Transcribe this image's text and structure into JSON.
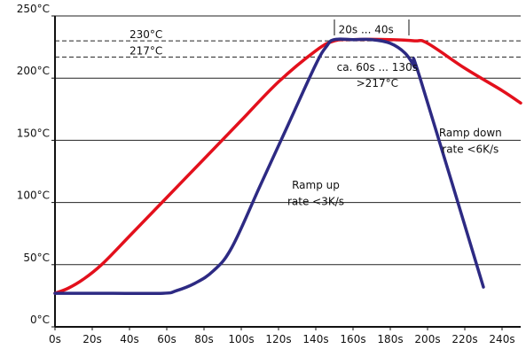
{
  "chart_data": {
    "type": "line",
    "xlim": [
      0,
      250
    ],
    "ylim": [
      0,
      250
    ],
    "x_ticks": [
      0,
      20,
      40,
      60,
      80,
      100,
      120,
      140,
      160,
      180,
      200,
      220,
      240
    ],
    "x_tick_labels": [
      "0s",
      "20s",
      "40s",
      "60s",
      "80s",
      "100s",
      "120s",
      "140s",
      "160s",
      "180s",
      "200s",
      "220s",
      "240s"
    ],
    "y_ticks": [
      0,
      50,
      100,
      150,
      200,
      250
    ],
    "y_tick_labels": [
      "0°C",
      "50°C",
      "100°C",
      "150°C",
      "200°C",
      "250°C"
    ],
    "grid": "horizontal",
    "reference_lines": [
      {
        "y": 230,
        "label": "230°C"
      },
      {
        "y": 217,
        "label": "217°C"
      }
    ],
    "series": [
      {
        "color": "#e3101c",
        "points": [
          [
            0,
            27
          ],
          [
            7,
            31
          ],
          [
            15,
            38
          ],
          [
            25,
            50
          ],
          [
            40,
            73
          ],
          [
            60,
            104
          ],
          [
            80,
            135
          ],
          [
            100,
            166
          ],
          [
            120,
            197
          ],
          [
            140,
            222
          ],
          [
            150,
            230
          ],
          [
            160,
            231
          ],
          [
            180,
            231
          ],
          [
            193,
            230
          ],
          [
            200,
            228
          ],
          [
            220,
            208
          ],
          [
            240,
            190
          ],
          [
            250,
            180
          ]
        ]
      },
      {
        "color": "#2d2a83",
        "points": [
          [
            0,
            27
          ],
          [
            30,
            27
          ],
          [
            58,
            27
          ],
          [
            65,
            29
          ],
          [
            75,
            35
          ],
          [
            85,
            45
          ],
          [
            95,
            64
          ],
          [
            110,
            113
          ],
          [
            125,
            162
          ],
          [
            140,
            211
          ],
          [
            146,
            226
          ],
          [
            150,
            231
          ],
          [
            160,
            231
          ],
          [
            170,
            231
          ],
          [
            180,
            228
          ],
          [
            188,
            220
          ],
          [
            193,
            209
          ],
          [
            196,
            200
          ],
          [
            230,
            32
          ]
        ]
      }
    ],
    "annotations": [
      {
        "text": "20s ... 40s",
        "anchor": [
          167,
          236
        ]
      },
      {
        "text": "ca. 60s ... 130s",
        "anchor": [
          173,
          206
        ]
      },
      {
        "text": ">217°C",
        "anchor": [
          173,
          193
        ]
      },
      {
        "text": "Ramp down",
        "anchor": [
          223,
          153
        ]
      },
      {
        "text": "rate <6K/s",
        "anchor": [
          223,
          140
        ]
      },
      {
        "text": "Ramp up",
        "anchor": [
          140,
          111
        ]
      },
      {
        "text": "rate <3K/s",
        "anchor": [
          140,
          98
        ]
      }
    ],
    "bracket": {
      "x_start": 150,
      "x_end": 190,
      "y": 240
    }
  }
}
